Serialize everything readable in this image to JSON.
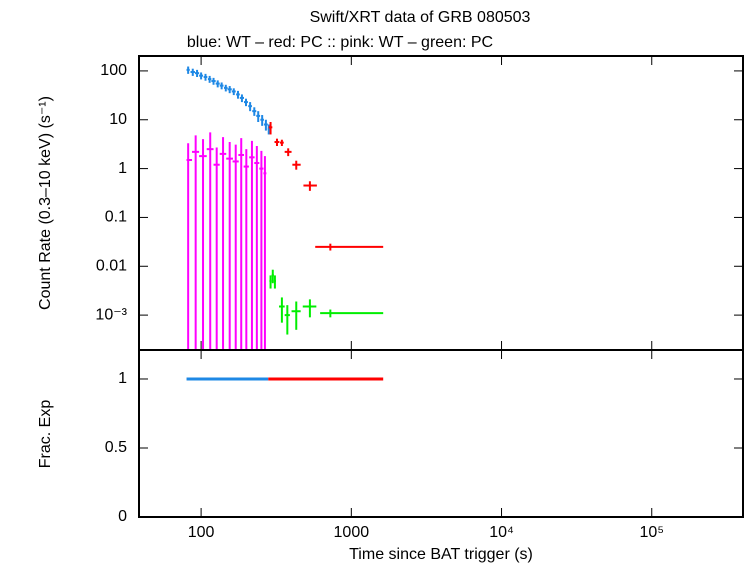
{
  "chart_data": [
    {
      "type": "errorbar",
      "title": "Swift/XRT data of GRB 080503",
      "subtitle": "blue: WT  – red: PC  :: pink: WT  – green: PC",
      "y_label": "Count Rate (0.3–10 keV) (s⁻¹)",
      "y_log": true,
      "x_log": true,
      "xlim": [
        38.6,
        405000
      ],
      "ylim": [
        0.000193,
        202
      ],
      "yticks": [
        100,
        10,
        1,
        0.1,
        0.01,
        {
          "value": 0.001,
          "label": "10⁻³"
        }
      ],
      "series": [
        {
          "name": "WT",
          "color": "#1e88e5",
          "x": [
            82,
            88,
            94,
            100,
            107,
            114,
            121,
            129,
            137,
            146,
            155,
            165,
            176,
            187,
            199,
            212,
            226,
            240,
            255,
            270,
            282
          ],
          "values": [
            105,
            95,
            90,
            80,
            75,
            68,
            62,
            55,
            50,
            45,
            42,
            38,
            33,
            28,
            23,
            19,
            15,
            12,
            10,
            8,
            6.5
          ],
          "yerr": [
            18,
            16,
            15,
            13,
            12,
            11,
            10,
            9,
            8,
            7,
            7,
            6,
            6,
            5,
            4,
            4,
            3,
            3,
            2.5,
            2,
            1.5
          ],
          "xerr": [
            [
              2,
              2
            ],
            [
              3,
              3
            ],
            [
              3,
              3
            ],
            [
              3,
              3
            ],
            [
              3,
              3
            ],
            [
              3,
              3
            ],
            [
              4,
              4
            ],
            [
              4,
              4
            ],
            [
              4,
              4
            ],
            [
              4,
              4
            ],
            [
              5,
              5
            ],
            [
              5,
              5
            ],
            [
              5,
              5
            ],
            [
              6,
              6
            ],
            [
              6,
              6
            ],
            [
              6,
              6
            ],
            [
              7,
              7
            ],
            [
              7,
              7
            ],
            [
              7,
              7
            ],
            [
              8,
              8
            ],
            [
              4,
              4
            ]
          ]
        },
        {
          "name": "WT",
          "color": "#ff00ff",
          "x": [
            82,
            92,
            103,
            115,
            127,
            140,
            155,
            170,
            185,
            200,
            218,
            235,
            252,
            266
          ],
          "values": [
            1.5,
            2.2,
            1.8,
            2.5,
            1.2,
            2,
            1.6,
            1.4,
            1.9,
            1.1,
            1.7,
            1.3,
            1,
            0.8
          ],
          "yerr": [
            1.8,
            2.6,
            2.2,
            3,
            1.5,
            2.4,
            1.9,
            1.7,
            2.3,
            1.4,
            2,
            1.6,
            1.3,
            1
          ],
          "xerr": [
            [
              2,
              5
            ],
            [
              5,
              5
            ],
            [
              6,
              6
            ],
            [
              6,
              6
            ],
            [
              6,
              6
            ],
            [
              7,
              7
            ],
            [
              8,
              8
            ],
            [
              8,
              8
            ],
            [
              8,
              8
            ],
            [
              8,
              8
            ],
            [
              9,
              9
            ],
            [
              9,
              9
            ],
            [
              8,
              8
            ],
            [
              6,
              6
            ]
          ]
        },
        {
          "name": "PC",
          "color": "#ff0000",
          "x": [
            290,
            320,
            345,
            380,
            430,
            530,
            725
          ],
          "values": [
            7,
            3.5,
            3.4,
            2.2,
            1.2,
            0.45,
            0.025
          ],
          "yerr": [
            2,
            0.6,
            0.5,
            0.4,
            0.25,
            0.1,
            0.004
          ],
          "xerr": [
            [
              8,
              8
            ],
            [
              12,
              12
            ],
            [
              10,
              10
            ],
            [
              20,
              20
            ],
            [
              25,
              30
            ],
            [
              50,
              60
            ],
            [
              150,
              905
            ]
          ]
        },
        {
          "name": "PC",
          "color": "#00ee00",
          "x": [
            290,
            300,
            310,
            345,
            375,
            430,
            530,
            725
          ],
          "values": [
            0.005,
            0.0065,
            0.005,
            0.0015,
            0.001,
            0.0012,
            0.0015,
            0.0011
          ],
          "yerr": [
            0.0015,
            0.002,
            0.0015,
            0.0008,
            0.0006,
            0.0007,
            0.0006,
            0.0002
          ],
          "xerr": [
            [
              5,
              5
            ],
            [
              5,
              5
            ],
            [
              5,
              5
            ],
            [
              15,
              15
            ],
            [
              15,
              15
            ],
            [
              30,
              30
            ],
            [
              55,
              55
            ],
            [
              105,
              905
            ]
          ]
        }
      ]
    },
    {
      "type": "line",
      "x_label": "Time since BAT trigger (s)",
      "y_label": "Frac. Exp",
      "x_log": true,
      "xlim": [
        38.6,
        405000
      ],
      "ylim": [
        0,
        1.21
      ],
      "xticks": [
        100,
        1000,
        {
          "value": 10000,
          "label": "10⁴"
        },
        {
          "value": 100000,
          "label": "10⁵"
        }
      ],
      "yticks": [
        0,
        0.5,
        1
      ],
      "series": [
        {
          "color": "#1e88e5",
          "x": [
            80,
            280
          ],
          "values": [
            1,
            1
          ]
        },
        {
          "color": "#ff0000",
          "x": [
            280,
            1630
          ],
          "values": [
            1,
            1
          ]
        }
      ]
    }
  ]
}
